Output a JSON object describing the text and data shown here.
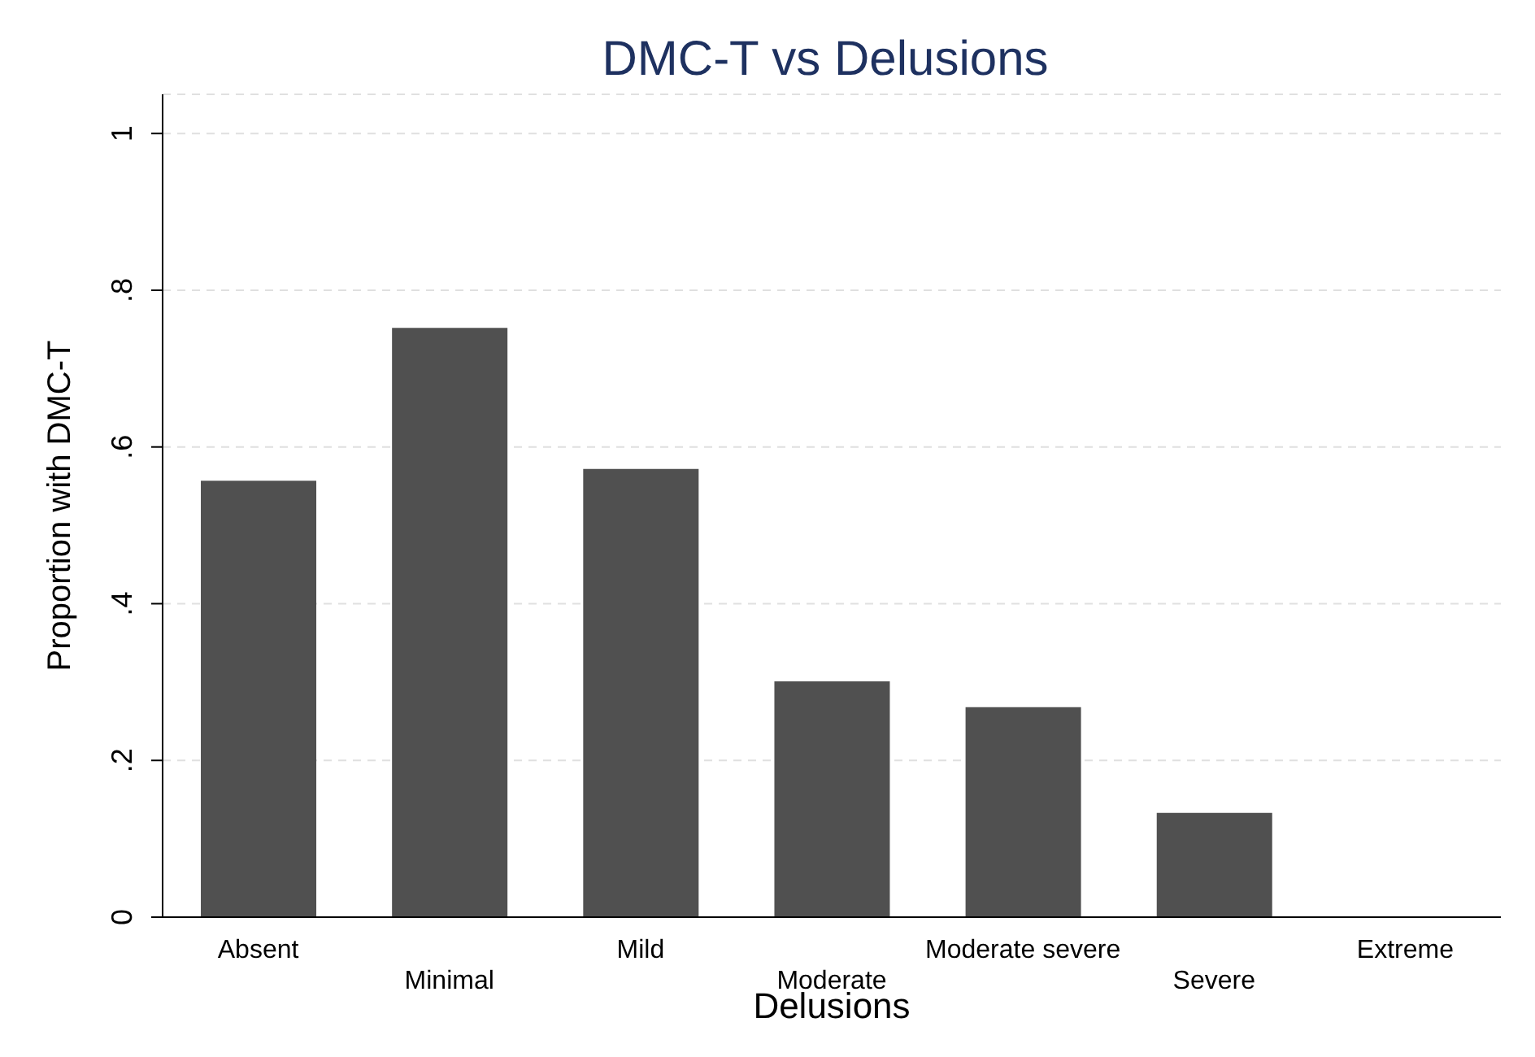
{
  "chart_data": {
    "type": "bar",
    "title": "DMC-T vs Delusions",
    "xlabel": "Delusions",
    "ylabel": "Proportion with DMC-T",
    "categories": [
      "Absent",
      "Minimal",
      "Mild",
      "Moderate",
      "Moderate severe",
      "Severe",
      "Extreme"
    ],
    "values": [
      0.557,
      0.752,
      0.572,
      0.301,
      0.268,
      0.133,
      0
    ],
    "color": "#505050",
    "ylim": [
      0,
      1.05
    ],
    "yticks": [
      {
        "value": 0,
        "label": "0"
      },
      {
        "value": 0.2,
        "label": ".2"
      },
      {
        "value": 0.4,
        "label": ".4"
      },
      {
        "value": 0.6,
        "label": ".6"
      },
      {
        "value": 0.8,
        "label": ".8"
      },
      {
        "value": 1,
        "label": "1"
      }
    ],
    "grid": "y",
    "legend": false
  }
}
